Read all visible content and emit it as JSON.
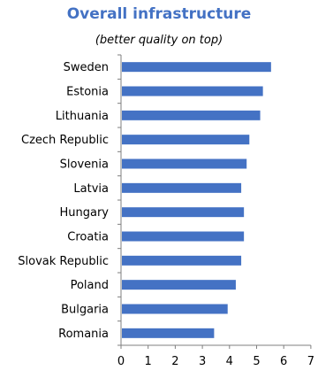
{
  "chart_data": {
    "type": "bar",
    "orientation": "horizontal",
    "title": "Overall infrastructure",
    "subtitle": "(better quality on top)",
    "categories": [
      "Sweden",
      "Estonia",
      "Lithuania",
      "Czech Republic",
      "Slovenia",
      "Latvia",
      "Hungary",
      "Croatia",
      "Slovak Republic",
      "Poland",
      "Bulgaria",
      "Romania"
    ],
    "values": [
      5.5,
      5.2,
      5.1,
      4.7,
      4.6,
      4.4,
      4.5,
      4.5,
      4.4,
      4.2,
      3.9,
      3.4
    ],
    "xlim": [
      0,
      7
    ],
    "xticks": [
      "0",
      "1",
      "2",
      "3",
      "4",
      "5",
      "6",
      "7"
    ],
    "grid": false,
    "legend": "none",
    "colors": {
      "bar": "#4472C4",
      "title": "#4472C4",
      "axis": "#7f7f7f"
    }
  }
}
